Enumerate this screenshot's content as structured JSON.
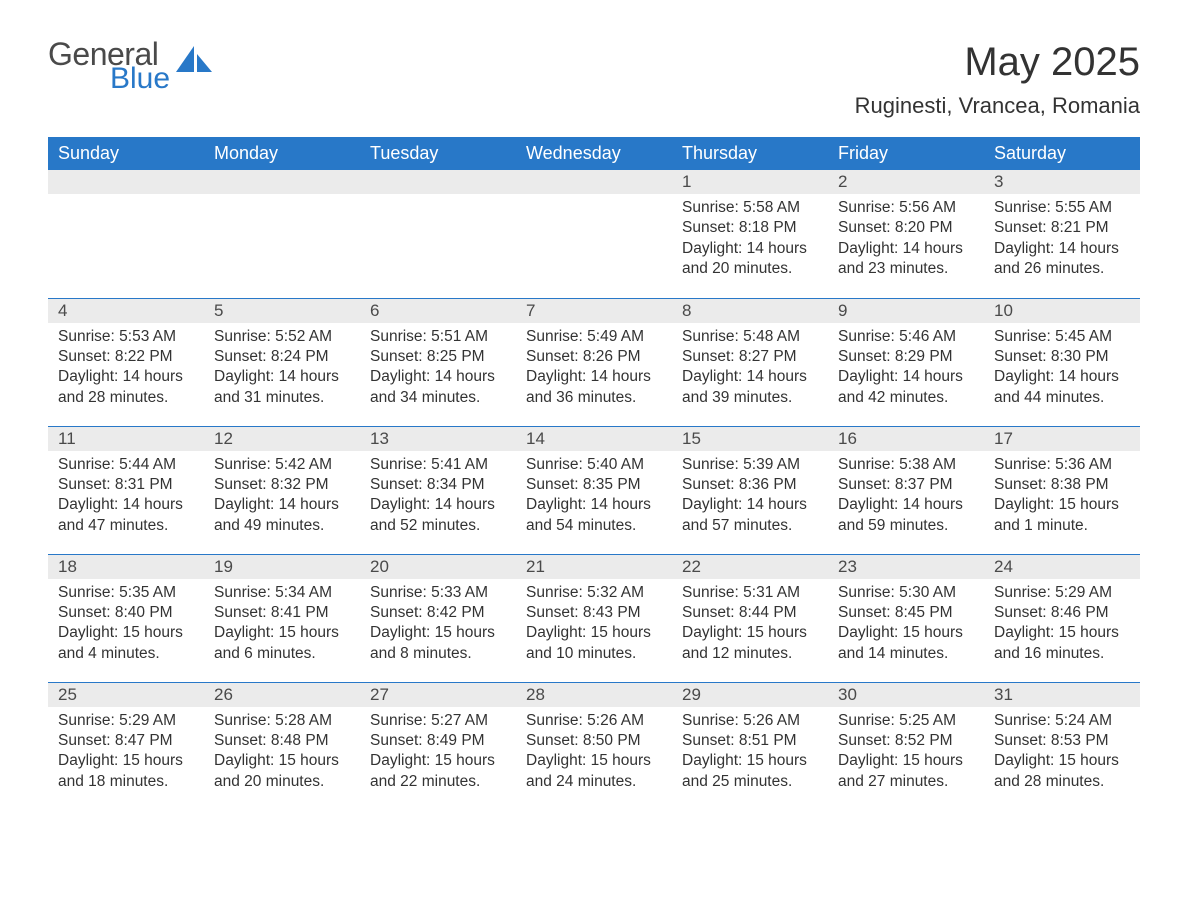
{
  "logo": {
    "general": "General",
    "blue": "Blue"
  },
  "title": "May 2025",
  "location": "Ruginesti, Vrancea, Romania",
  "colors": {
    "header_bg": "#2878c8",
    "header_text": "#ffffff",
    "daynum_bg": "#ebebeb",
    "text": "#333333",
    "rule": "#2878c8",
    "logo_blue": "#2878c8",
    "logo_gray": "#4a4a4a",
    "page_bg": "#ffffff"
  },
  "weekdays": [
    "Sunday",
    "Monday",
    "Tuesday",
    "Wednesday",
    "Thursday",
    "Friday",
    "Saturday"
  ],
  "weeks": [
    [
      null,
      null,
      null,
      null,
      {
        "n": "1",
        "sunrise": "5:58 AM",
        "sunset": "8:18 PM",
        "daylight": "14 hours and 20 minutes."
      },
      {
        "n": "2",
        "sunrise": "5:56 AM",
        "sunset": "8:20 PM",
        "daylight": "14 hours and 23 minutes."
      },
      {
        "n": "3",
        "sunrise": "5:55 AM",
        "sunset": "8:21 PM",
        "daylight": "14 hours and 26 minutes."
      }
    ],
    [
      {
        "n": "4",
        "sunrise": "5:53 AM",
        "sunset": "8:22 PM",
        "daylight": "14 hours and 28 minutes."
      },
      {
        "n": "5",
        "sunrise": "5:52 AM",
        "sunset": "8:24 PM",
        "daylight": "14 hours and 31 minutes."
      },
      {
        "n": "6",
        "sunrise": "5:51 AM",
        "sunset": "8:25 PM",
        "daylight": "14 hours and 34 minutes."
      },
      {
        "n": "7",
        "sunrise": "5:49 AM",
        "sunset": "8:26 PM",
        "daylight": "14 hours and 36 minutes."
      },
      {
        "n": "8",
        "sunrise": "5:48 AM",
        "sunset": "8:27 PM",
        "daylight": "14 hours and 39 minutes."
      },
      {
        "n": "9",
        "sunrise": "5:46 AM",
        "sunset": "8:29 PM",
        "daylight": "14 hours and 42 minutes."
      },
      {
        "n": "10",
        "sunrise": "5:45 AM",
        "sunset": "8:30 PM",
        "daylight": "14 hours and 44 minutes."
      }
    ],
    [
      {
        "n": "11",
        "sunrise": "5:44 AM",
        "sunset": "8:31 PM",
        "daylight": "14 hours and 47 minutes."
      },
      {
        "n": "12",
        "sunrise": "5:42 AM",
        "sunset": "8:32 PM",
        "daylight": "14 hours and 49 minutes."
      },
      {
        "n": "13",
        "sunrise": "5:41 AM",
        "sunset": "8:34 PM",
        "daylight": "14 hours and 52 minutes."
      },
      {
        "n": "14",
        "sunrise": "5:40 AM",
        "sunset": "8:35 PM",
        "daylight": "14 hours and 54 minutes."
      },
      {
        "n": "15",
        "sunrise": "5:39 AM",
        "sunset": "8:36 PM",
        "daylight": "14 hours and 57 minutes."
      },
      {
        "n": "16",
        "sunrise": "5:38 AM",
        "sunset": "8:37 PM",
        "daylight": "14 hours and 59 minutes."
      },
      {
        "n": "17",
        "sunrise": "5:36 AM",
        "sunset": "8:38 PM",
        "daylight": "15 hours and 1 minute."
      }
    ],
    [
      {
        "n": "18",
        "sunrise": "5:35 AM",
        "sunset": "8:40 PM",
        "daylight": "15 hours and 4 minutes."
      },
      {
        "n": "19",
        "sunrise": "5:34 AM",
        "sunset": "8:41 PM",
        "daylight": "15 hours and 6 minutes."
      },
      {
        "n": "20",
        "sunrise": "5:33 AM",
        "sunset": "8:42 PM",
        "daylight": "15 hours and 8 minutes."
      },
      {
        "n": "21",
        "sunrise": "5:32 AM",
        "sunset": "8:43 PM",
        "daylight": "15 hours and 10 minutes."
      },
      {
        "n": "22",
        "sunrise": "5:31 AM",
        "sunset": "8:44 PM",
        "daylight": "15 hours and 12 minutes."
      },
      {
        "n": "23",
        "sunrise": "5:30 AM",
        "sunset": "8:45 PM",
        "daylight": "15 hours and 14 minutes."
      },
      {
        "n": "24",
        "sunrise": "5:29 AM",
        "sunset": "8:46 PM",
        "daylight": "15 hours and 16 minutes."
      }
    ],
    [
      {
        "n": "25",
        "sunrise": "5:29 AM",
        "sunset": "8:47 PM",
        "daylight": "15 hours and 18 minutes."
      },
      {
        "n": "26",
        "sunrise": "5:28 AM",
        "sunset": "8:48 PM",
        "daylight": "15 hours and 20 minutes."
      },
      {
        "n": "27",
        "sunrise": "5:27 AM",
        "sunset": "8:49 PM",
        "daylight": "15 hours and 22 minutes."
      },
      {
        "n": "28",
        "sunrise": "5:26 AM",
        "sunset": "8:50 PM",
        "daylight": "15 hours and 24 minutes."
      },
      {
        "n": "29",
        "sunrise": "5:26 AM",
        "sunset": "8:51 PM",
        "daylight": "15 hours and 25 minutes."
      },
      {
        "n": "30",
        "sunrise": "5:25 AM",
        "sunset": "8:52 PM",
        "daylight": "15 hours and 27 minutes."
      },
      {
        "n": "31",
        "sunrise": "5:24 AM",
        "sunset": "8:53 PM",
        "daylight": "15 hours and 28 minutes."
      }
    ]
  ],
  "labels": {
    "sunrise": "Sunrise:",
    "sunset": "Sunset:",
    "daylight": "Daylight:"
  }
}
